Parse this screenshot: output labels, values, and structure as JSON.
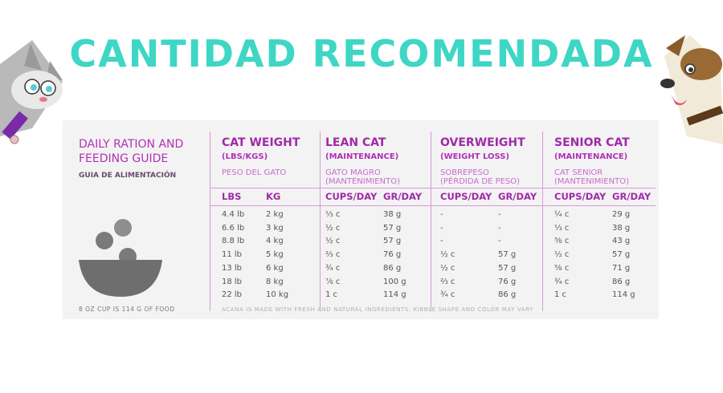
{
  "title": "CANTIDAD RECOMENDADA",
  "guide": {
    "title_line1": "DAILY RATION AND",
    "title_line2": "FEEDING GUIDE",
    "subtitle_es": "GUIA DE ALIMENTACIÓN",
    "footnote": "8 OZ CUP IS 114 G OF FOOD",
    "disclaimer": "ACANA IS MADE WITH FRESH AND NATURAL INGREDIENTS. KIBBLE SHAPE AND COLOR MAY VARY"
  },
  "columns": [
    {
      "title": "CAT WEIGHT",
      "sub": "(LBS/KGS)",
      "es1": "PESO DEL GATO",
      "es2": "",
      "h1": "LBS",
      "h2": "KG"
    },
    {
      "title": "LEAN CAT",
      "sub": "(MAINTENANCE)",
      "es1": "GATO MAGRO",
      "es2": "(MANTENIMIENTO)",
      "h1": "CUPS/DAY",
      "h2": "GR/DAY"
    },
    {
      "title": "OVERWEIGHT",
      "sub": "(WEIGHT LOSS)",
      "es1": "SOBREPESO",
      "es2": "(PÉRDIDA DE PESO)",
      "h1": "CUPS/DAY",
      "h2": "GR/DAY"
    },
    {
      "title": "SENIOR CAT",
      "sub": "(MAINTENANCE)",
      "es1": "CAT SENIOR",
      "es2": "(MANTENIMIENTO)",
      "h1": "CUPS/DAY",
      "h2": "GR/DAY"
    }
  ],
  "rows": [
    [
      "4.4 lb",
      "2 kg",
      "⅓ c",
      "38 g",
      "-",
      "-",
      "¼ c",
      "29 g"
    ],
    [
      "6.6 lb",
      "3 kg",
      "½ c",
      "57 g",
      "-",
      "-",
      "⅓ c",
      "38 g"
    ],
    [
      "8.8 lb",
      "4 kg",
      "½ c",
      "57 g",
      "-",
      "-",
      "⅜ c",
      "43 g"
    ],
    [
      "11 lb",
      "5 kg",
      "⅔ c",
      "76 g",
      "½ c",
      "57 g",
      "½ c",
      "57 g"
    ],
    [
      "13 lb",
      "6 kg",
      "¾ c",
      "86 g",
      "½ c",
      "57 g",
      "⅝ c",
      "71 g"
    ],
    [
      "18 lb",
      "8 kg",
      "⅞ c",
      "100 g",
      "⅔ c",
      "76 g",
      "¾ c",
      "86 g"
    ],
    [
      "22 lb",
      "10 kg",
      "1 c",
      "114 g",
      "¾ c",
      "86 g",
      "1 c",
      "114 g"
    ]
  ],
  "colors": {
    "title": "#3ed6c4",
    "accent": "#a02aa8",
    "card": "#f3f3f3"
  }
}
